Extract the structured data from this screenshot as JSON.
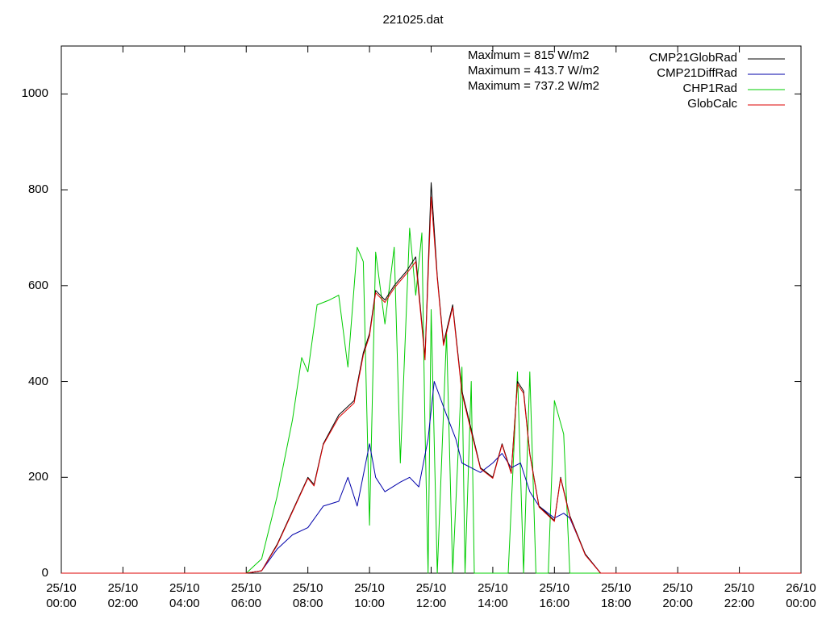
{
  "chart_data": {
    "type": "line",
    "title": "221025.dat",
    "xlabel": "",
    "ylabel": "",
    "ylim": [
      0,
      1100
    ],
    "yticks": [
      0,
      200,
      400,
      600,
      800,
      1000
    ],
    "xlim_hours": [
      0,
      24
    ],
    "xtick_labels": [
      {
        "date": "25/10",
        "time": "00:00"
      },
      {
        "date": "25/10",
        "time": "02:00"
      },
      {
        "date": "25/10",
        "time": "04:00"
      },
      {
        "date": "25/10",
        "time": "06:00"
      },
      {
        "date": "25/10",
        "time": "08:00"
      },
      {
        "date": "25/10",
        "time": "10:00"
      },
      {
        "date": "25/10",
        "time": "12:00"
      },
      {
        "date": "25/10",
        "time": "14:00"
      },
      {
        "date": "25/10",
        "time": "16:00"
      },
      {
        "date": "25/10",
        "time": "18:00"
      },
      {
        "date": "25/10",
        "time": "20:00"
      },
      {
        "date": "25/10",
        "time": "22:00"
      },
      {
        "date": "26/10",
        "time": "00:00"
      }
    ],
    "annotations": [
      "Maximum = 815 W/m2",
      "Maximum = 413.7 W/m2",
      "Maximum = 737.2 W/m2"
    ],
    "legend_position": "top-right",
    "grid": false,
    "series": [
      {
        "name": "CMP21GlobRad",
        "color": "#000000",
        "points": [
          [
            0,
            0
          ],
          [
            6.0,
            0
          ],
          [
            6.5,
            5
          ],
          [
            7.0,
            60
          ],
          [
            7.5,
            130
          ],
          [
            8.0,
            200
          ],
          [
            8.2,
            185
          ],
          [
            8.5,
            270
          ],
          [
            9.0,
            330
          ],
          [
            9.5,
            360
          ],
          [
            9.8,
            460
          ],
          [
            10.0,
            500
          ],
          [
            10.2,
            590
          ],
          [
            10.5,
            570
          ],
          [
            10.8,
            600
          ],
          [
            11.2,
            630
          ],
          [
            11.5,
            660
          ],
          [
            11.8,
            450
          ],
          [
            12.0,
            815
          ],
          [
            12.2,
            620
          ],
          [
            12.4,
            480
          ],
          [
            12.7,
            560
          ],
          [
            13.0,
            380
          ],
          [
            13.3,
            300
          ],
          [
            13.6,
            220
          ],
          [
            14.0,
            200
          ],
          [
            14.3,
            270
          ],
          [
            14.6,
            210
          ],
          [
            14.8,
            400
          ],
          [
            15.0,
            380
          ],
          [
            15.2,
            250
          ],
          [
            15.5,
            140
          ],
          [
            16.0,
            110
          ],
          [
            16.2,
            200
          ],
          [
            16.5,
            120
          ],
          [
            17.0,
            40
          ],
          [
            17.5,
            0
          ],
          [
            24,
            0
          ]
        ]
      },
      {
        "name": "CMP21DiffRad",
        "color": "#0000aa",
        "points": [
          [
            0,
            0
          ],
          [
            6.0,
            0
          ],
          [
            6.5,
            5
          ],
          [
            7.0,
            50
          ],
          [
            7.5,
            80
          ],
          [
            8.0,
            95
          ],
          [
            8.5,
            140
          ],
          [
            9.0,
            150
          ],
          [
            9.3,
            200
          ],
          [
            9.6,
            140
          ],
          [
            10.0,
            270
          ],
          [
            10.2,
            200
          ],
          [
            10.5,
            170
          ],
          [
            11.0,
            190
          ],
          [
            11.3,
            200
          ],
          [
            11.6,
            180
          ],
          [
            11.9,
            280
          ],
          [
            12.1,
            400
          ],
          [
            12.5,
            330
          ],
          [
            12.8,
            280
          ],
          [
            13.0,
            230
          ],
          [
            13.3,
            220
          ],
          [
            13.6,
            210
          ],
          [
            14.0,
            230
          ],
          [
            14.3,
            250
          ],
          [
            14.6,
            220
          ],
          [
            14.9,
            230
          ],
          [
            15.2,
            170
          ],
          [
            15.5,
            140
          ],
          [
            16.0,
            115
          ],
          [
            16.3,
            125
          ],
          [
            16.5,
            115
          ],
          [
            17.0,
            40
          ],
          [
            17.5,
            0
          ],
          [
            24,
            0
          ]
        ]
      },
      {
        "name": "CHP1Rad",
        "color": "#00cc00",
        "points": [
          [
            0,
            0
          ],
          [
            6.0,
            0
          ],
          [
            6.5,
            30
          ],
          [
            7.0,
            160
          ],
          [
            7.5,
            320
          ],
          [
            7.8,
            450
          ],
          [
            8.0,
            420
          ],
          [
            8.3,
            560
          ],
          [
            8.7,
            570
          ],
          [
            9.0,
            580
          ],
          [
            9.3,
            430
          ],
          [
            9.6,
            680
          ],
          [
            9.8,
            650
          ],
          [
            10.0,
            100
          ],
          [
            10.2,
            670
          ],
          [
            10.5,
            520
          ],
          [
            10.8,
            680
          ],
          [
            11.0,
            230
          ],
          [
            11.3,
            720
          ],
          [
            11.5,
            580
          ],
          [
            11.7,
            710
          ],
          [
            11.8,
            300
          ],
          [
            11.9,
            0
          ],
          [
            12.0,
            550
          ],
          [
            12.2,
            0
          ],
          [
            12.5,
            500
          ],
          [
            12.7,
            0
          ],
          [
            13.0,
            430
          ],
          [
            13.1,
            0
          ],
          [
            13.3,
            400
          ],
          [
            13.4,
            0
          ],
          [
            14.0,
            0
          ],
          [
            14.5,
            0
          ],
          [
            14.8,
            420
          ],
          [
            15.0,
            0
          ],
          [
            15.2,
            420
          ],
          [
            15.4,
            0
          ],
          [
            15.8,
            0
          ],
          [
            16.0,
            360
          ],
          [
            16.3,
            290
          ],
          [
            16.5,
            0
          ],
          [
            24,
            0
          ]
        ]
      },
      {
        "name": "GlobCalc",
        "color": "#dd0000",
        "points": [
          [
            0,
            0
          ],
          [
            6.0,
            0
          ],
          [
            6.5,
            5
          ],
          [
            7.0,
            58
          ],
          [
            7.5,
            128
          ],
          [
            8.0,
            198
          ],
          [
            8.2,
            182
          ],
          [
            8.5,
            268
          ],
          [
            9.0,
            325
          ],
          [
            9.5,
            355
          ],
          [
            9.8,
            455
          ],
          [
            10.0,
            495
          ],
          [
            10.2,
            585
          ],
          [
            10.5,
            565
          ],
          [
            10.8,
            595
          ],
          [
            11.2,
            625
          ],
          [
            11.5,
            650
          ],
          [
            11.8,
            445
          ],
          [
            12.0,
            785
          ],
          [
            12.2,
            615
          ],
          [
            12.4,
            475
          ],
          [
            12.7,
            555
          ],
          [
            13.0,
            375
          ],
          [
            13.3,
            295
          ],
          [
            13.6,
            218
          ],
          [
            14.0,
            198
          ],
          [
            14.3,
            268
          ],
          [
            14.6,
            208
          ],
          [
            14.8,
            395
          ],
          [
            15.0,
            375
          ],
          [
            15.2,
            248
          ],
          [
            15.5,
            138
          ],
          [
            16.0,
            108
          ],
          [
            16.2,
            198
          ],
          [
            16.5,
            118
          ],
          [
            17.0,
            38
          ],
          [
            17.5,
            0
          ],
          [
            24,
            0
          ]
        ]
      }
    ]
  }
}
